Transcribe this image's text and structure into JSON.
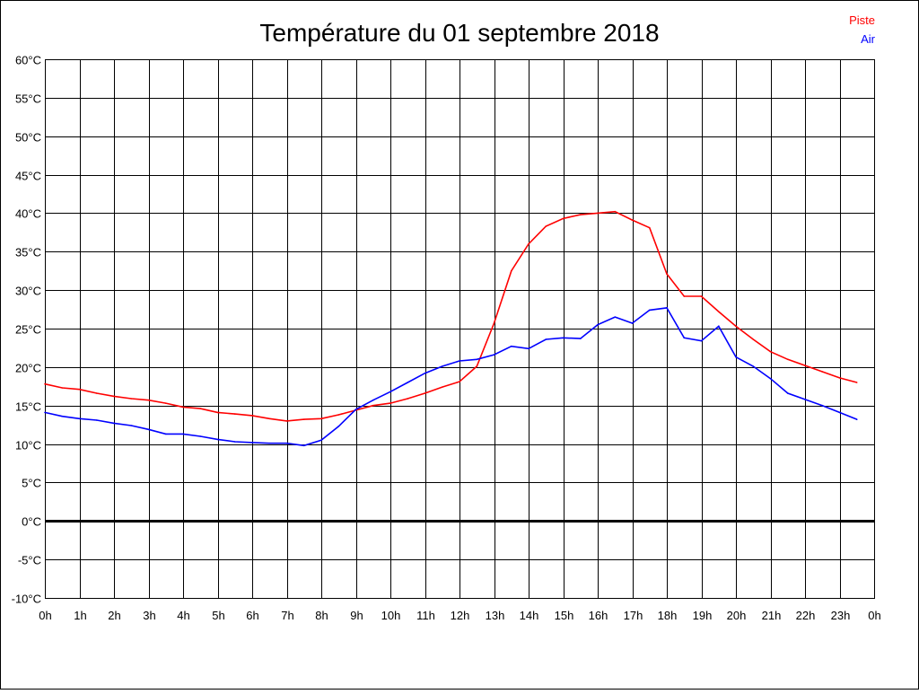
{
  "chart_data": {
    "type": "line",
    "title": "Température du 01 septembre 2018",
    "x_tick_labels": [
      "0h",
      "1h",
      "2h",
      "3h",
      "4h",
      "5h",
      "6h",
      "7h",
      "8h",
      "9h",
      "10h",
      "11h",
      "12h",
      "13h",
      "14h",
      "15h",
      "16h",
      "17h",
      "18h",
      "19h",
      "20h",
      "21h",
      "22h",
      "23h",
      "0h"
    ],
    "y_tick_labels": [
      "60°C",
      "55°C",
      "50°C",
      "45°C",
      "40°C",
      "35°C",
      "30°C",
      "25°C",
      "20°C",
      "15°C",
      "10°C",
      "5°C",
      "0°C",
      "-5°C",
      "-10°C"
    ],
    "xlim": [
      0,
      24
    ],
    "ylim": [
      -10,
      60
    ],
    "grid": true,
    "legend_placement": "top-right",
    "x": [
      0,
      0.5,
      1,
      1.5,
      2,
      2.5,
      3,
      3.5,
      4,
      4.5,
      5,
      5.5,
      6,
      6.5,
      7,
      7.5,
      8,
      8.5,
      9,
      9.5,
      10,
      10.5,
      11,
      11.5,
      12,
      12.5,
      13,
      13.5,
      14,
      14.5,
      15,
      15.5,
      16,
      16.5,
      17,
      17.5,
      18,
      18.5,
      19,
      19.5,
      20,
      20.5,
      21,
      21.5,
      22,
      22.5,
      23,
      23.5
    ],
    "series": [
      {
        "name": "Piste",
        "color": "#ff0000",
        "values": [
          17.8,
          17.3,
          17.1,
          16.6,
          16.2,
          15.9,
          15.7,
          15.3,
          14.8,
          14.6,
          14.1,
          13.9,
          13.7,
          13.3,
          13.0,
          13.2,
          13.3,
          13.8,
          14.4,
          15.0,
          15.3,
          15.9,
          16.6,
          17.4,
          18.1,
          20.1,
          25.7,
          32.5,
          36.0,
          38.3,
          39.3,
          39.8,
          40.0,
          40.2,
          39.1,
          38.1,
          32.1,
          29.2,
          29.2,
          27.2,
          25.3,
          23.6,
          22.0,
          21.0,
          20.2,
          19.4,
          18.6,
          18.0
        ]
      },
      {
        "name": "Air",
        "color": "#0000ff",
        "values": [
          14.1,
          13.6,
          13.3,
          13.1,
          12.7,
          12.4,
          11.9,
          11.3,
          11.3,
          11.0,
          10.6,
          10.3,
          10.2,
          10.1,
          10.1,
          9.8,
          10.5,
          12.3,
          14.5,
          15.7,
          16.8,
          18.0,
          19.2,
          20.1,
          20.8,
          21.0,
          21.6,
          22.7,
          22.4,
          23.6,
          23.8,
          23.7,
          25.5,
          26.5,
          25.7,
          27.4,
          27.7,
          23.8,
          23.4,
          25.3,
          21.3,
          20.1,
          18.5,
          16.6,
          15.8,
          15.0,
          14.1,
          13.2
        ]
      }
    ]
  }
}
